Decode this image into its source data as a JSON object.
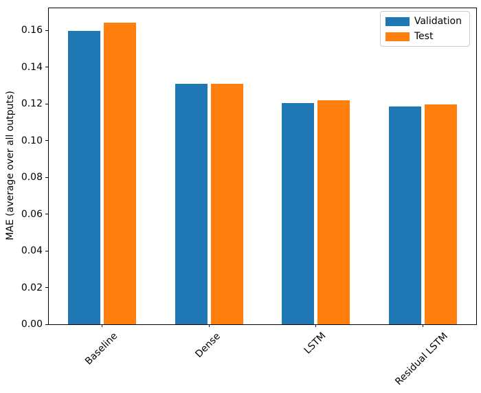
{
  "figure": {
    "background": "#ffffff",
    "axis_color": "#000000",
    "text_color": "#000000",
    "legend_border_color": "#cccccc"
  },
  "chart_data": {
    "type": "bar",
    "title": "",
    "xlabel": "",
    "ylabel": "MAE (average over all outputs)",
    "categories": [
      "Baseline",
      "Dense",
      "LSTM",
      "Residual LSTM"
    ],
    "series": [
      {
        "name": "Validation",
        "color": "#1f77b4",
        "values": [
          0.1595,
          0.131,
          0.1205,
          0.1185
        ]
      },
      {
        "name": "Test",
        "color": "#ff7f0e",
        "values": [
          0.164,
          0.1307,
          0.122,
          0.1196
        ]
      }
    ],
    "ylim": [
      0,
      0.172
    ],
    "ytick_values": [
      0.0,
      0.02,
      0.04,
      0.06,
      0.08,
      0.1,
      0.12,
      0.14,
      0.16
    ],
    "ytick_labels": [
      "0.00",
      "0.02",
      "0.04",
      "0.06",
      "0.08",
      "0.10",
      "0.12",
      "0.14",
      "0.16"
    ],
    "grid": false,
    "bar_width_fraction": 0.3,
    "xtick_rotation_deg": 45,
    "legend": {
      "position": "upper right",
      "entries": [
        "Validation",
        "Test"
      ]
    }
  }
}
